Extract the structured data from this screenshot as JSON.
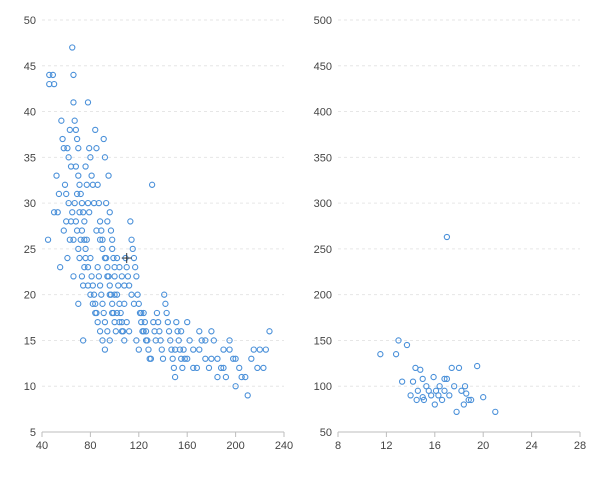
{
  "chart_data": [
    {
      "type": "scatter",
      "title": "",
      "xlabel": "",
      "ylabel": "",
      "xlim": [
        40,
        240
      ],
      "ylim": [
        5,
        50
      ],
      "xticks": [
        40,
        80,
        120,
        160,
        200,
        240
      ],
      "yticks": [
        5,
        10,
        15,
        20,
        25,
        30,
        35,
        40,
        45,
        50
      ],
      "grid": "horizontal-dashed",
      "point_color": "#4a90d9",
      "cursor": [
        110,
        24
      ],
      "series": [
        {
          "points": [
            [
              46,
              44
            ],
            [
              46,
              43
            ],
            [
              49,
              44
            ],
            [
              50,
              43
            ],
            [
              52,
              33
            ],
            [
              53,
              29
            ],
            [
              55,
              23
            ],
            [
              56,
              39
            ],
            [
              57,
              37
            ],
            [
              58,
              36
            ],
            [
              59,
              32
            ],
            [
              60,
              31
            ],
            [
              61,
              36
            ],
            [
              62,
              35
            ],
            [
              63,
              38
            ],
            [
              64,
              34
            ],
            [
              65,
              47
            ],
            [
              66,
              44
            ],
            [
              66,
              41
            ],
            [
              67,
              39
            ],
            [
              68,
              38
            ],
            [
              69,
              37
            ],
            [
              70,
              36
            ],
            [
              70,
              33
            ],
            [
              71,
              32
            ],
            [
              72,
              31
            ],
            [
              73,
              30
            ],
            [
              74,
              29
            ],
            [
              75,
              28
            ],
            [
              60,
              28
            ],
            [
              62,
              30
            ],
            [
              63,
              26
            ],
            [
              64,
              28
            ],
            [
              65,
              29
            ],
            [
              66,
              26
            ],
            [
              67,
              30
            ],
            [
              68,
              28
            ],
            [
              69,
              27
            ],
            [
              70,
              25
            ],
            [
              71,
              24
            ],
            [
              72,
              26
            ],
            [
              73,
              22
            ],
            [
              74,
              21
            ],
            [
              75,
              23
            ],
            [
              76,
              25
            ],
            [
              77,
              26
            ],
            [
              78,
              41
            ],
            [
              79,
              36
            ],
            [
              80,
              35
            ],
            [
              81,
              33
            ],
            [
              82,
              32
            ],
            [
              83,
              30
            ],
            [
              84,
              38
            ],
            [
              85,
              36
            ],
            [
              86,
              32
            ],
            [
              87,
              30
            ],
            [
              88,
              28
            ],
            [
              89,
              27
            ],
            [
              90,
              26
            ],
            [
              91,
              37
            ],
            [
              92,
              35
            ],
            [
              93,
              30
            ],
            [
              94,
              28
            ],
            [
              95,
              33
            ],
            [
              96,
              29
            ],
            [
              97,
              27
            ],
            [
              98,
              26
            ],
            [
              99,
              24
            ],
            [
              100,
              23
            ],
            [
              45,
              26
            ],
            [
              50,
              29
            ],
            [
              54,
              31
            ],
            [
              58,
              27
            ],
            [
              61,
              24
            ],
            [
              66,
              22
            ],
            [
              70,
              19
            ],
            [
              74,
              15
            ],
            [
              78,
              21
            ],
            [
              80,
              24
            ],
            [
              81,
              22
            ],
            [
              82,
              21
            ],
            [
              83,
              20
            ],
            [
              84,
              19
            ],
            [
              85,
              18
            ],
            [
              86,
              23
            ],
            [
              87,
              22
            ],
            [
              88,
              21
            ],
            [
              89,
              20
            ],
            [
              90,
              19
            ],
            [
              91,
              18
            ],
            [
              92,
              17
            ],
            [
              93,
              24
            ],
            [
              94,
              23
            ],
            [
              95,
              22
            ],
            [
              96,
              21
            ],
            [
              97,
              20
            ],
            [
              98,
              19
            ],
            [
              99,
              18
            ],
            [
              100,
              17
            ],
            [
              101,
              16
            ],
            [
              102,
              20
            ],
            [
              103,
              21
            ],
            [
              104,
              19
            ],
            [
              105,
              18
            ],
            [
              106,
              17
            ],
            [
              107,
              16
            ],
            [
              108,
              15
            ],
            [
              109,
              24
            ],
            [
              110,
              23
            ],
            [
              111,
              22
            ],
            [
              112,
              21
            ],
            [
              113,
              28
            ],
            [
              114,
              26
            ],
            [
              115,
              25
            ],
            [
              116,
              24
            ],
            [
              117,
              23
            ],
            [
              118,
              22
            ],
            [
              119,
              20
            ],
            [
              120,
              19
            ],
            [
              121,
              18
            ],
            [
              122,
              17
            ],
            [
              123,
              16
            ],
            [
              124,
              18
            ],
            [
              125,
              17
            ],
            [
              126,
              16
            ],
            [
              127,
              15
            ],
            [
              128,
              14
            ],
            [
              129,
              13
            ],
            [
              130,
              13
            ],
            [
              131,
              32
            ],
            [
              132,
              17
            ],
            [
              133,
              16
            ],
            [
              134,
              15
            ],
            [
              135,
              18
            ],
            [
              136,
              17
            ],
            [
              137,
              16
            ],
            [
              138,
              15
            ],
            [
              139,
              14
            ],
            [
              140,
              13
            ],
            [
              141,
              20
            ],
            [
              142,
              19
            ],
            [
              143,
              18
            ],
            [
              144,
              17
            ],
            [
              145,
              16
            ],
            [
              146,
              15
            ],
            [
              147,
              14
            ],
            [
              148,
              13
            ],
            [
              149,
              12
            ],
            [
              150,
              11
            ],
            [
              151,
              17
            ],
            [
              152,
              16
            ],
            [
              153,
              15
            ],
            [
              154,
              14
            ],
            [
              155,
              13
            ],
            [
              156,
              12
            ],
            [
              157,
              14
            ],
            [
              158,
              13
            ],
            [
              160,
              13
            ],
            [
              162,
              15
            ],
            [
              165,
              14
            ],
            [
              168,
              12
            ],
            [
              170,
              16
            ],
            [
              172,
              15
            ],
            [
              175,
              13
            ],
            [
              178,
              12
            ],
            [
              180,
              16
            ],
            [
              182,
              15
            ],
            [
              185,
              13
            ],
            [
              188,
              12
            ],
            [
              190,
              14
            ],
            [
              192,
              11
            ],
            [
              195,
              15
            ],
            [
              198,
              13
            ],
            [
              200,
              10
            ],
            [
              203,
              12
            ],
            [
              205,
              11
            ],
            [
              208,
              11
            ],
            [
              210,
              9
            ],
            [
              213,
              13
            ],
            [
              215,
              14
            ],
            [
              218,
              12
            ],
            [
              220,
              14
            ],
            [
              223,
              12
            ],
            [
              225,
              14
            ],
            [
              228,
              16
            ],
            [
              76,
              34
            ],
            [
              77,
              32
            ],
            [
              78,
              30
            ],
            [
              79,
              29
            ],
            [
              85,
              27
            ],
            [
              88,
              26
            ],
            [
              90,
              25
            ],
            [
              92,
              24
            ],
            [
              94,
              22
            ],
            [
              96,
              20
            ],
            [
              98,
              25
            ],
            [
              100,
              22
            ],
            [
              102,
              24
            ],
            [
              104,
              23
            ],
            [
              106,
              22
            ],
            [
              108,
              21
            ],
            [
              68,
              34
            ],
            [
              69,
              31
            ],
            [
              71,
              29
            ],
            [
              73,
              27
            ],
            [
              75,
              26
            ],
            [
              76,
              24
            ],
            [
              78,
              23
            ],
            [
              80,
              20
            ],
            [
              82,
              19
            ],
            [
              84,
              18
            ],
            [
              86,
              17
            ],
            [
              88,
              16
            ],
            [
              90,
              15
            ],
            [
              92,
              14
            ],
            [
              94,
              16
            ],
            [
              96,
              15
            ],
            [
              98,
              18
            ],
            [
              100,
              20
            ],
            [
              102,
              18
            ],
            [
              104,
              17
            ],
            [
              106,
              16
            ],
            [
              108,
              19
            ],
            [
              110,
              17
            ],
            [
              112,
              16
            ],
            [
              114,
              20
            ],
            [
              116,
              19
            ],
            [
              118,
              15
            ],
            [
              120,
              14
            ],
            [
              122,
              18
            ],
            [
              124,
              16
            ],
            [
              126,
              15
            ],
            [
              150,
              14
            ],
            [
              155,
              16
            ],
            [
              160,
              17
            ],
            [
              165,
              12
            ],
            [
              170,
              14
            ],
            [
              175,
              15
            ],
            [
              180,
              13
            ],
            [
              185,
              11
            ],
            [
              190,
              12
            ],
            [
              195,
              14
            ],
            [
              200,
              13
            ]
          ]
        }
      ]
    },
    {
      "type": "scatter",
      "title": "",
      "xlabel": "",
      "ylabel": "",
      "xlim": [
        8,
        28
      ],
      "ylim": [
        50,
        500
      ],
      "xticks": [
        8,
        12,
        16,
        20,
        24,
        28
      ],
      "yticks": [
        50,
        100,
        150,
        200,
        250,
        300,
        350,
        400,
        450,
        500
      ],
      "grid": "horizontal-dashed",
      "point_color": "#4a90d9",
      "series": [
        {
          "points": [
            [
              11.5,
              135
            ],
            [
              12.8,
              135
            ],
            [
              13.0,
              150
            ],
            [
              13.3,
              105
            ],
            [
              13.7,
              145
            ],
            [
              14.0,
              90
            ],
            [
              14.2,
              105
            ],
            [
              14.4,
              120
            ],
            [
              14.6,
              95
            ],
            [
              14.8,
              118
            ],
            [
              15.0,
              108
            ],
            [
              15.1,
              85
            ],
            [
              15.3,
              100
            ],
            [
              15.5,
              95
            ],
            [
              15.7,
              90
            ],
            [
              15.9,
              110
            ],
            [
              16.1,
              95
            ],
            [
              16.3,
              90
            ],
            [
              16.4,
              100
            ],
            [
              16.6,
              85
            ],
            [
              16.8,
              108
            ],
            [
              17.0,
              263
            ],
            [
              17.2,
              90
            ],
            [
              17.4,
              120
            ],
            [
              17.6,
              100
            ],
            [
              17.8,
              72
            ],
            [
              18.0,
              120
            ],
            [
              18.2,
              95
            ],
            [
              18.4,
              80
            ],
            [
              18.6,
              92
            ],
            [
              18.8,
              85
            ],
            [
              19.0,
              85
            ],
            [
              19.5,
              122
            ],
            [
              20.0,
              88
            ],
            [
              21.0,
              72
            ],
            [
              15.0,
              88
            ],
            [
              16.0,
              80
            ],
            [
              17.0,
              108
            ],
            [
              18.5,
              100
            ],
            [
              14.5,
              85
            ],
            [
              16.8,
              95
            ]
          ]
        }
      ]
    }
  ]
}
